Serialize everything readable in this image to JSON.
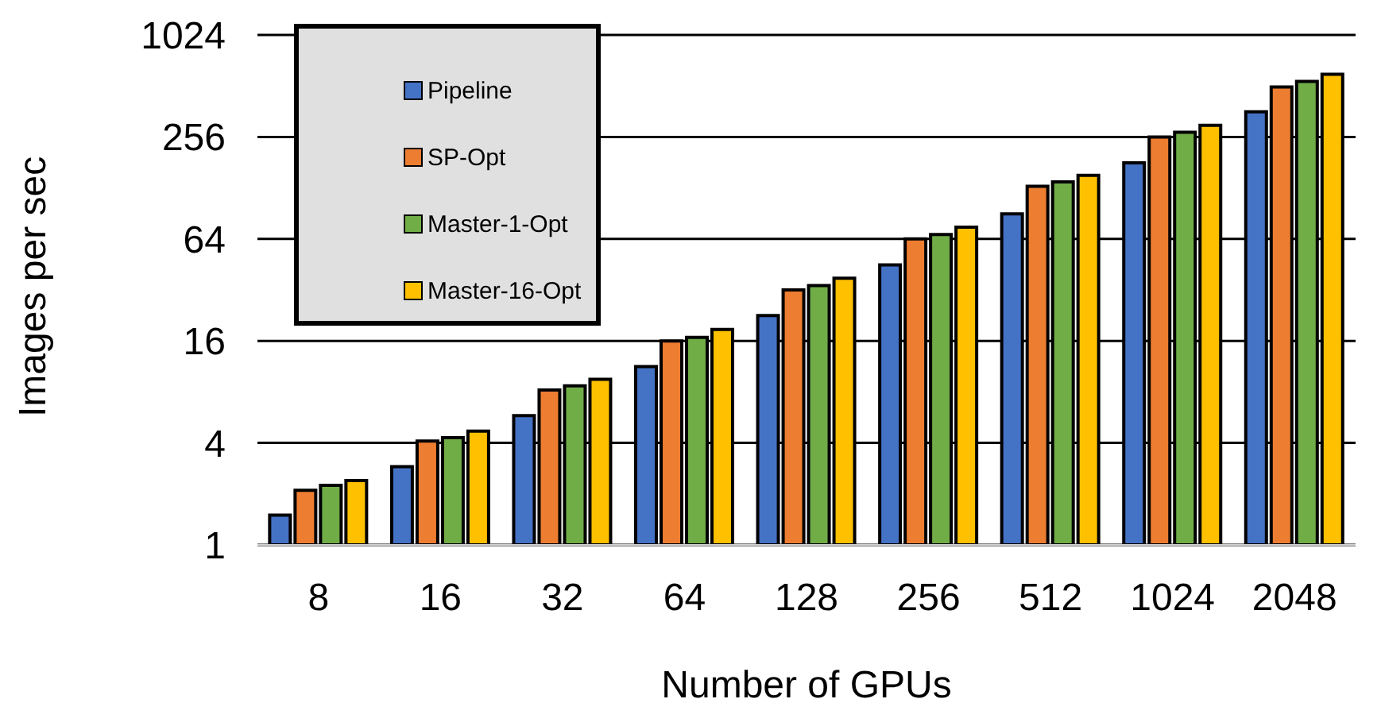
{
  "chart_data": {
    "type": "bar",
    "xlabel": "Number of GPUs",
    "ylabel": "Images per sec",
    "categories": [
      "8",
      "16",
      "32",
      "64",
      "128",
      "256",
      "512",
      "1024",
      "2048"
    ],
    "series": [
      {
        "name": "Pipeline",
        "color": "#4472c4",
        "values": [
          1.5,
          2.9,
          5.8,
          11.3,
          22.6,
          45,
          90,
          180,
          360
        ]
      },
      {
        "name": "SP-Opt",
        "color": "#ed7d31",
        "values": [
          2.1,
          4.1,
          8.2,
          16,
          32,
          64,
          131,
          256,
          505
        ]
      },
      {
        "name": "Master-1-Opt",
        "color": "#70ad47",
        "values": [
          2.25,
          4.3,
          8.7,
          16.8,
          34,
          68,
          139,
          273,
          545
        ]
      },
      {
        "name": "Master-16-Opt",
        "color": "#ffc000",
        "values": [
          2.4,
          4.7,
          9.5,
          18.7,
          37.5,
          75,
          152,
          300,
          600
        ]
      }
    ],
    "log": true,
    "ylim": [
      1,
      1024
    ],
    "yticks": [
      1,
      4,
      16,
      64,
      256,
      1024
    ],
    "grid": "y",
    "legend": "top left"
  }
}
